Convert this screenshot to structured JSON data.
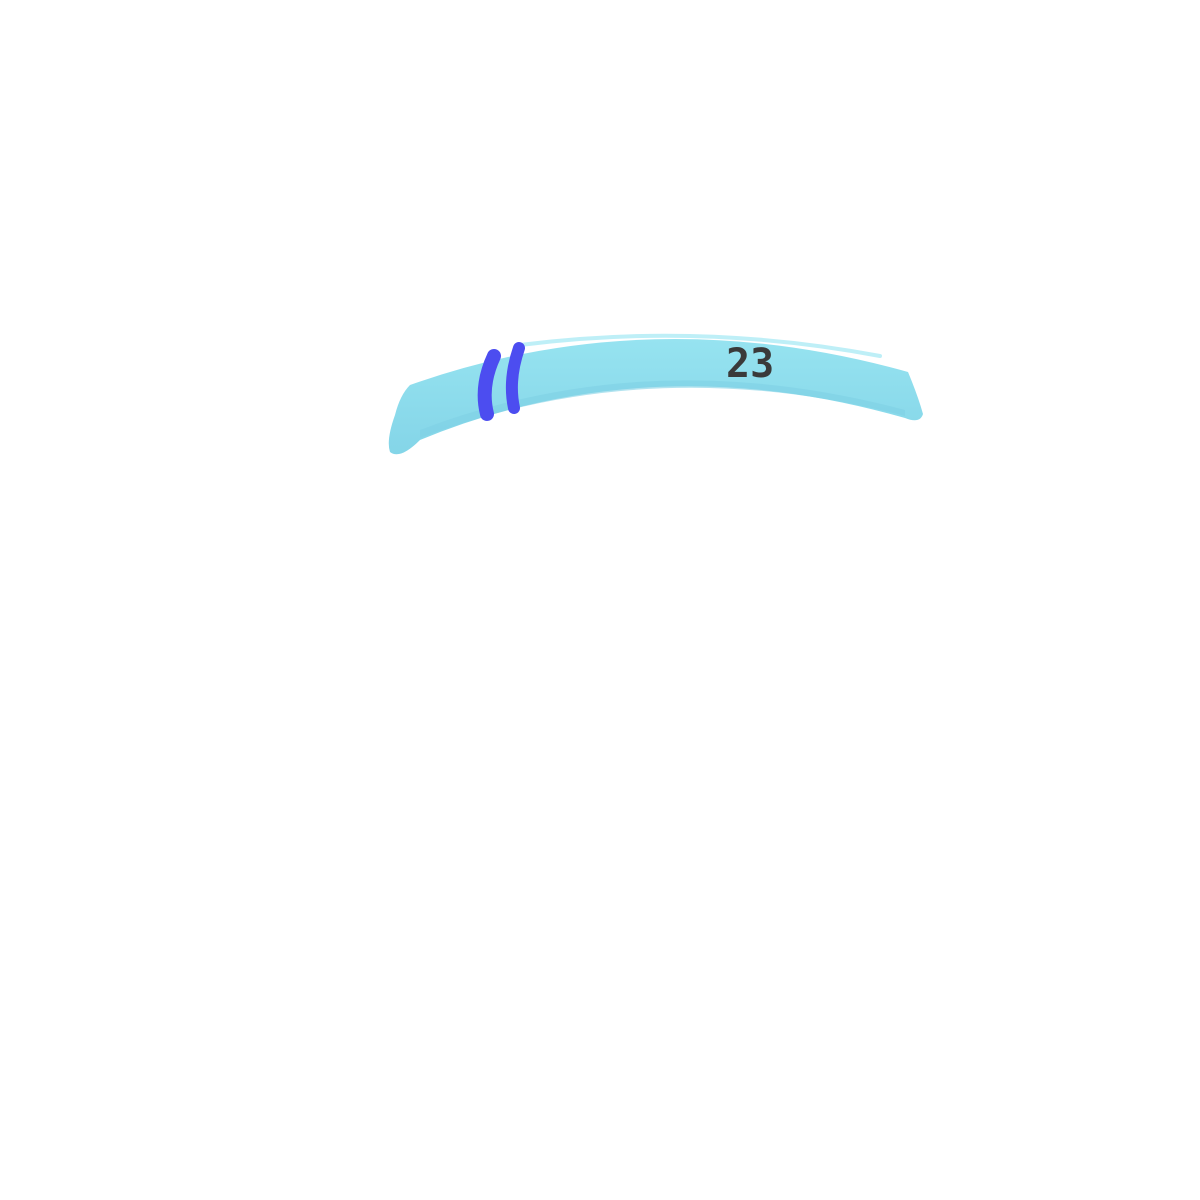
{
  "band": {
    "number": "23",
    "colors": {
      "band_fill": "#8ddfee",
      "band_shade": "#7fd0e4",
      "band_highlight": "#a3e8f3",
      "stripe": "#4c4df0",
      "number": "#3a3a3a",
      "background": "#ffffff"
    }
  }
}
